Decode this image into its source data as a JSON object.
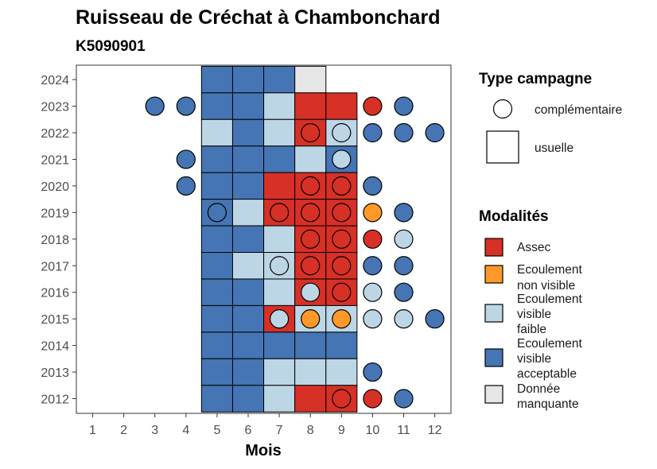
{
  "chart_data": {
    "type": "heatmap",
    "title": "Ruisseau de Créchat à Chambonchard",
    "subtitle": "K5090901",
    "xlabel": "Mois",
    "ylabel": "",
    "x": [
      1,
      2,
      3,
      4,
      5,
      6,
      7,
      8,
      9,
      10,
      11,
      12
    ],
    "y": [
      2012,
      2013,
      2014,
      2015,
      2016,
      2017,
      2018,
      2019,
      2020,
      2021,
      2022,
      2023,
      2024
    ],
    "legend_shape": {
      "title": "Type campagne",
      "items": [
        "complémentaire",
        "usuelle"
      ]
    },
    "legend_fill": {
      "title": "Modalités",
      "items": [
        {
          "key": "assec",
          "lines": [
            "Assec"
          ],
          "color": "#d73027"
        },
        {
          "key": "nonvisible",
          "lines": [
            "Ecoulement",
            "non visible"
          ],
          "color": "#fe9929"
        },
        {
          "key": "faible",
          "lines": [
            "Ecoulement",
            "visible",
            "faible"
          ],
          "color": "#bcd6e6"
        },
        {
          "key": "acceptable",
          "lines": [
            "Ecoulement",
            "visible",
            "acceptable"
          ],
          "color": "#4575b4"
        },
        {
          "key": "manquante",
          "lines": [
            "Donnée",
            "manquante"
          ],
          "color": "#e6e6e6"
        }
      ]
    },
    "usuelle": [
      {
        "year": 2024,
        "month": 5,
        "value": "acceptable"
      },
      {
        "year": 2024,
        "month": 6,
        "value": "acceptable"
      },
      {
        "year": 2024,
        "month": 7,
        "value": "acceptable"
      },
      {
        "year": 2024,
        "month": 8,
        "value": "manquante"
      },
      {
        "year": 2023,
        "month": 5,
        "value": "acceptable"
      },
      {
        "year": 2023,
        "month": 6,
        "value": "acceptable"
      },
      {
        "year": 2023,
        "month": 7,
        "value": "faible"
      },
      {
        "year": 2023,
        "month": 8,
        "value": "assec"
      },
      {
        "year": 2023,
        "month": 9,
        "value": "assec"
      },
      {
        "year": 2022,
        "month": 5,
        "value": "faible"
      },
      {
        "year": 2022,
        "month": 6,
        "value": "acceptable"
      },
      {
        "year": 2022,
        "month": 7,
        "value": "faible"
      },
      {
        "year": 2022,
        "month": 8,
        "value": "assec"
      },
      {
        "year": 2022,
        "month": 9,
        "value": "faible"
      },
      {
        "year": 2021,
        "month": 5,
        "value": "acceptable"
      },
      {
        "year": 2021,
        "month": 6,
        "value": "acceptable"
      },
      {
        "year": 2021,
        "month": 7,
        "value": "acceptable"
      },
      {
        "year": 2021,
        "month": 8,
        "value": "faible"
      },
      {
        "year": 2021,
        "month": 9,
        "value": "acceptable"
      },
      {
        "year": 2020,
        "month": 5,
        "value": "acceptable"
      },
      {
        "year": 2020,
        "month": 6,
        "value": "acceptable"
      },
      {
        "year": 2020,
        "month": 7,
        "value": "assec"
      },
      {
        "year": 2020,
        "month": 8,
        "value": "assec"
      },
      {
        "year": 2020,
        "month": 9,
        "value": "assec"
      },
      {
        "year": 2019,
        "month": 5,
        "value": "acceptable"
      },
      {
        "year": 2019,
        "month": 6,
        "value": "faible"
      },
      {
        "year": 2019,
        "month": 7,
        "value": "assec"
      },
      {
        "year": 2019,
        "month": 8,
        "value": "assec"
      },
      {
        "year": 2019,
        "month": 9,
        "value": "assec"
      },
      {
        "year": 2018,
        "month": 5,
        "value": "acceptable"
      },
      {
        "year": 2018,
        "month": 6,
        "value": "acceptable"
      },
      {
        "year": 2018,
        "month": 7,
        "value": "faible"
      },
      {
        "year": 2018,
        "month": 8,
        "value": "assec"
      },
      {
        "year": 2018,
        "month": 9,
        "value": "assec"
      },
      {
        "year": 2017,
        "month": 5,
        "value": "acceptable"
      },
      {
        "year": 2017,
        "month": 6,
        "value": "faible"
      },
      {
        "year": 2017,
        "month": 7,
        "value": "faible"
      },
      {
        "year": 2017,
        "month": 8,
        "value": "assec"
      },
      {
        "year": 2017,
        "month": 9,
        "value": "assec"
      },
      {
        "year": 2016,
        "month": 5,
        "value": "acceptable"
      },
      {
        "year": 2016,
        "month": 6,
        "value": "acceptable"
      },
      {
        "year": 2016,
        "month": 7,
        "value": "faible"
      },
      {
        "year": 2016,
        "month": 8,
        "value": "assec"
      },
      {
        "year": 2016,
        "month": 9,
        "value": "assec"
      },
      {
        "year": 2015,
        "month": 5,
        "value": "acceptable"
      },
      {
        "year": 2015,
        "month": 6,
        "value": "acceptable"
      },
      {
        "year": 2015,
        "month": 7,
        "value": "assec"
      },
      {
        "year": 2015,
        "month": 8,
        "value": "faible"
      },
      {
        "year": 2015,
        "month": 9,
        "value": "faible"
      },
      {
        "year": 2014,
        "month": 5,
        "value": "acceptable"
      },
      {
        "year": 2014,
        "month": 6,
        "value": "acceptable"
      },
      {
        "year": 2014,
        "month": 7,
        "value": "acceptable"
      },
      {
        "year": 2014,
        "month": 8,
        "value": "acceptable"
      },
      {
        "year": 2014,
        "month": 9,
        "value": "acceptable"
      },
      {
        "year": 2013,
        "month": 5,
        "value": "acceptable"
      },
      {
        "year": 2013,
        "month": 6,
        "value": "acceptable"
      },
      {
        "year": 2013,
        "month": 7,
        "value": "faible"
      },
      {
        "year": 2013,
        "month": 8,
        "value": "faible"
      },
      {
        "year": 2013,
        "month": 9,
        "value": "faible"
      },
      {
        "year": 2012,
        "month": 5,
        "value": "acceptable"
      },
      {
        "year": 2012,
        "month": 6,
        "value": "acceptable"
      },
      {
        "year": 2012,
        "month": 7,
        "value": "faible"
      },
      {
        "year": 2012,
        "month": 8,
        "value": "assec"
      },
      {
        "year": 2012,
        "month": 9,
        "value": "assec"
      }
    ],
    "complementaire": [
      {
        "year": 2023,
        "month": 3,
        "value": "acceptable"
      },
      {
        "year": 2023,
        "month": 4,
        "value": "acceptable"
      },
      {
        "year": 2023,
        "month": 10,
        "value": "assec"
      },
      {
        "year": 2023,
        "month": 11,
        "value": "acceptable"
      },
      {
        "year": 2022,
        "month": 8,
        "value": "assec"
      },
      {
        "year": 2022,
        "month": 9,
        "value": "faible"
      },
      {
        "year": 2022,
        "month": 10,
        "value": "acceptable"
      },
      {
        "year": 2022,
        "month": 11,
        "value": "acceptable"
      },
      {
        "year": 2022,
        "month": 12,
        "value": "acceptable"
      },
      {
        "year": 2021,
        "month": 4,
        "value": "acceptable"
      },
      {
        "year": 2021,
        "month": 9,
        "value": "faible"
      },
      {
        "year": 2020,
        "month": 4,
        "value": "acceptable"
      },
      {
        "year": 2020,
        "month": 8,
        "value": "assec"
      },
      {
        "year": 2020,
        "month": 9,
        "value": "assec"
      },
      {
        "year": 2020,
        "month": 10,
        "value": "acceptable"
      },
      {
        "year": 2019,
        "month": 5,
        "value": "acceptable"
      },
      {
        "year": 2019,
        "month": 7,
        "value": "assec"
      },
      {
        "year": 2019,
        "month": 8,
        "value": "assec"
      },
      {
        "year": 2019,
        "month": 9,
        "value": "assec"
      },
      {
        "year": 2019,
        "month": 10,
        "value": "nonvisible"
      },
      {
        "year": 2019,
        "month": 11,
        "value": "acceptable"
      },
      {
        "year": 2018,
        "month": 8,
        "value": "assec"
      },
      {
        "year": 2018,
        "month": 9,
        "value": "assec"
      },
      {
        "year": 2018,
        "month": 10,
        "value": "assec"
      },
      {
        "year": 2018,
        "month": 11,
        "value": "faible"
      },
      {
        "year": 2017,
        "month": 7,
        "value": "faible"
      },
      {
        "year": 2017,
        "month": 8,
        "value": "assec"
      },
      {
        "year": 2017,
        "month": 9,
        "value": "assec"
      },
      {
        "year": 2017,
        "month": 10,
        "value": "acceptable"
      },
      {
        "year": 2017,
        "month": 11,
        "value": "acceptable"
      },
      {
        "year": 2016,
        "month": 8,
        "value": "faible"
      },
      {
        "year": 2016,
        "month": 9,
        "value": "assec"
      },
      {
        "year": 2016,
        "month": 10,
        "value": "faible"
      },
      {
        "year": 2016,
        "month": 11,
        "value": "acceptable"
      },
      {
        "year": 2015,
        "month": 7,
        "value": "faible"
      },
      {
        "year": 2015,
        "month": 8,
        "value": "nonvisible"
      },
      {
        "year": 2015,
        "month": 9,
        "value": "nonvisible"
      },
      {
        "year": 2015,
        "month": 10,
        "value": "faible"
      },
      {
        "year": 2015,
        "month": 11,
        "value": "faible"
      },
      {
        "year": 2015,
        "month": 12,
        "value": "acceptable"
      },
      {
        "year": 2013,
        "month": 10,
        "value": "acceptable"
      },
      {
        "year": 2012,
        "month": 9,
        "value": "assec"
      },
      {
        "year": 2012,
        "month": 10,
        "value": "assec"
      },
      {
        "year": 2012,
        "month": 11,
        "value": "acceptable"
      }
    ]
  }
}
